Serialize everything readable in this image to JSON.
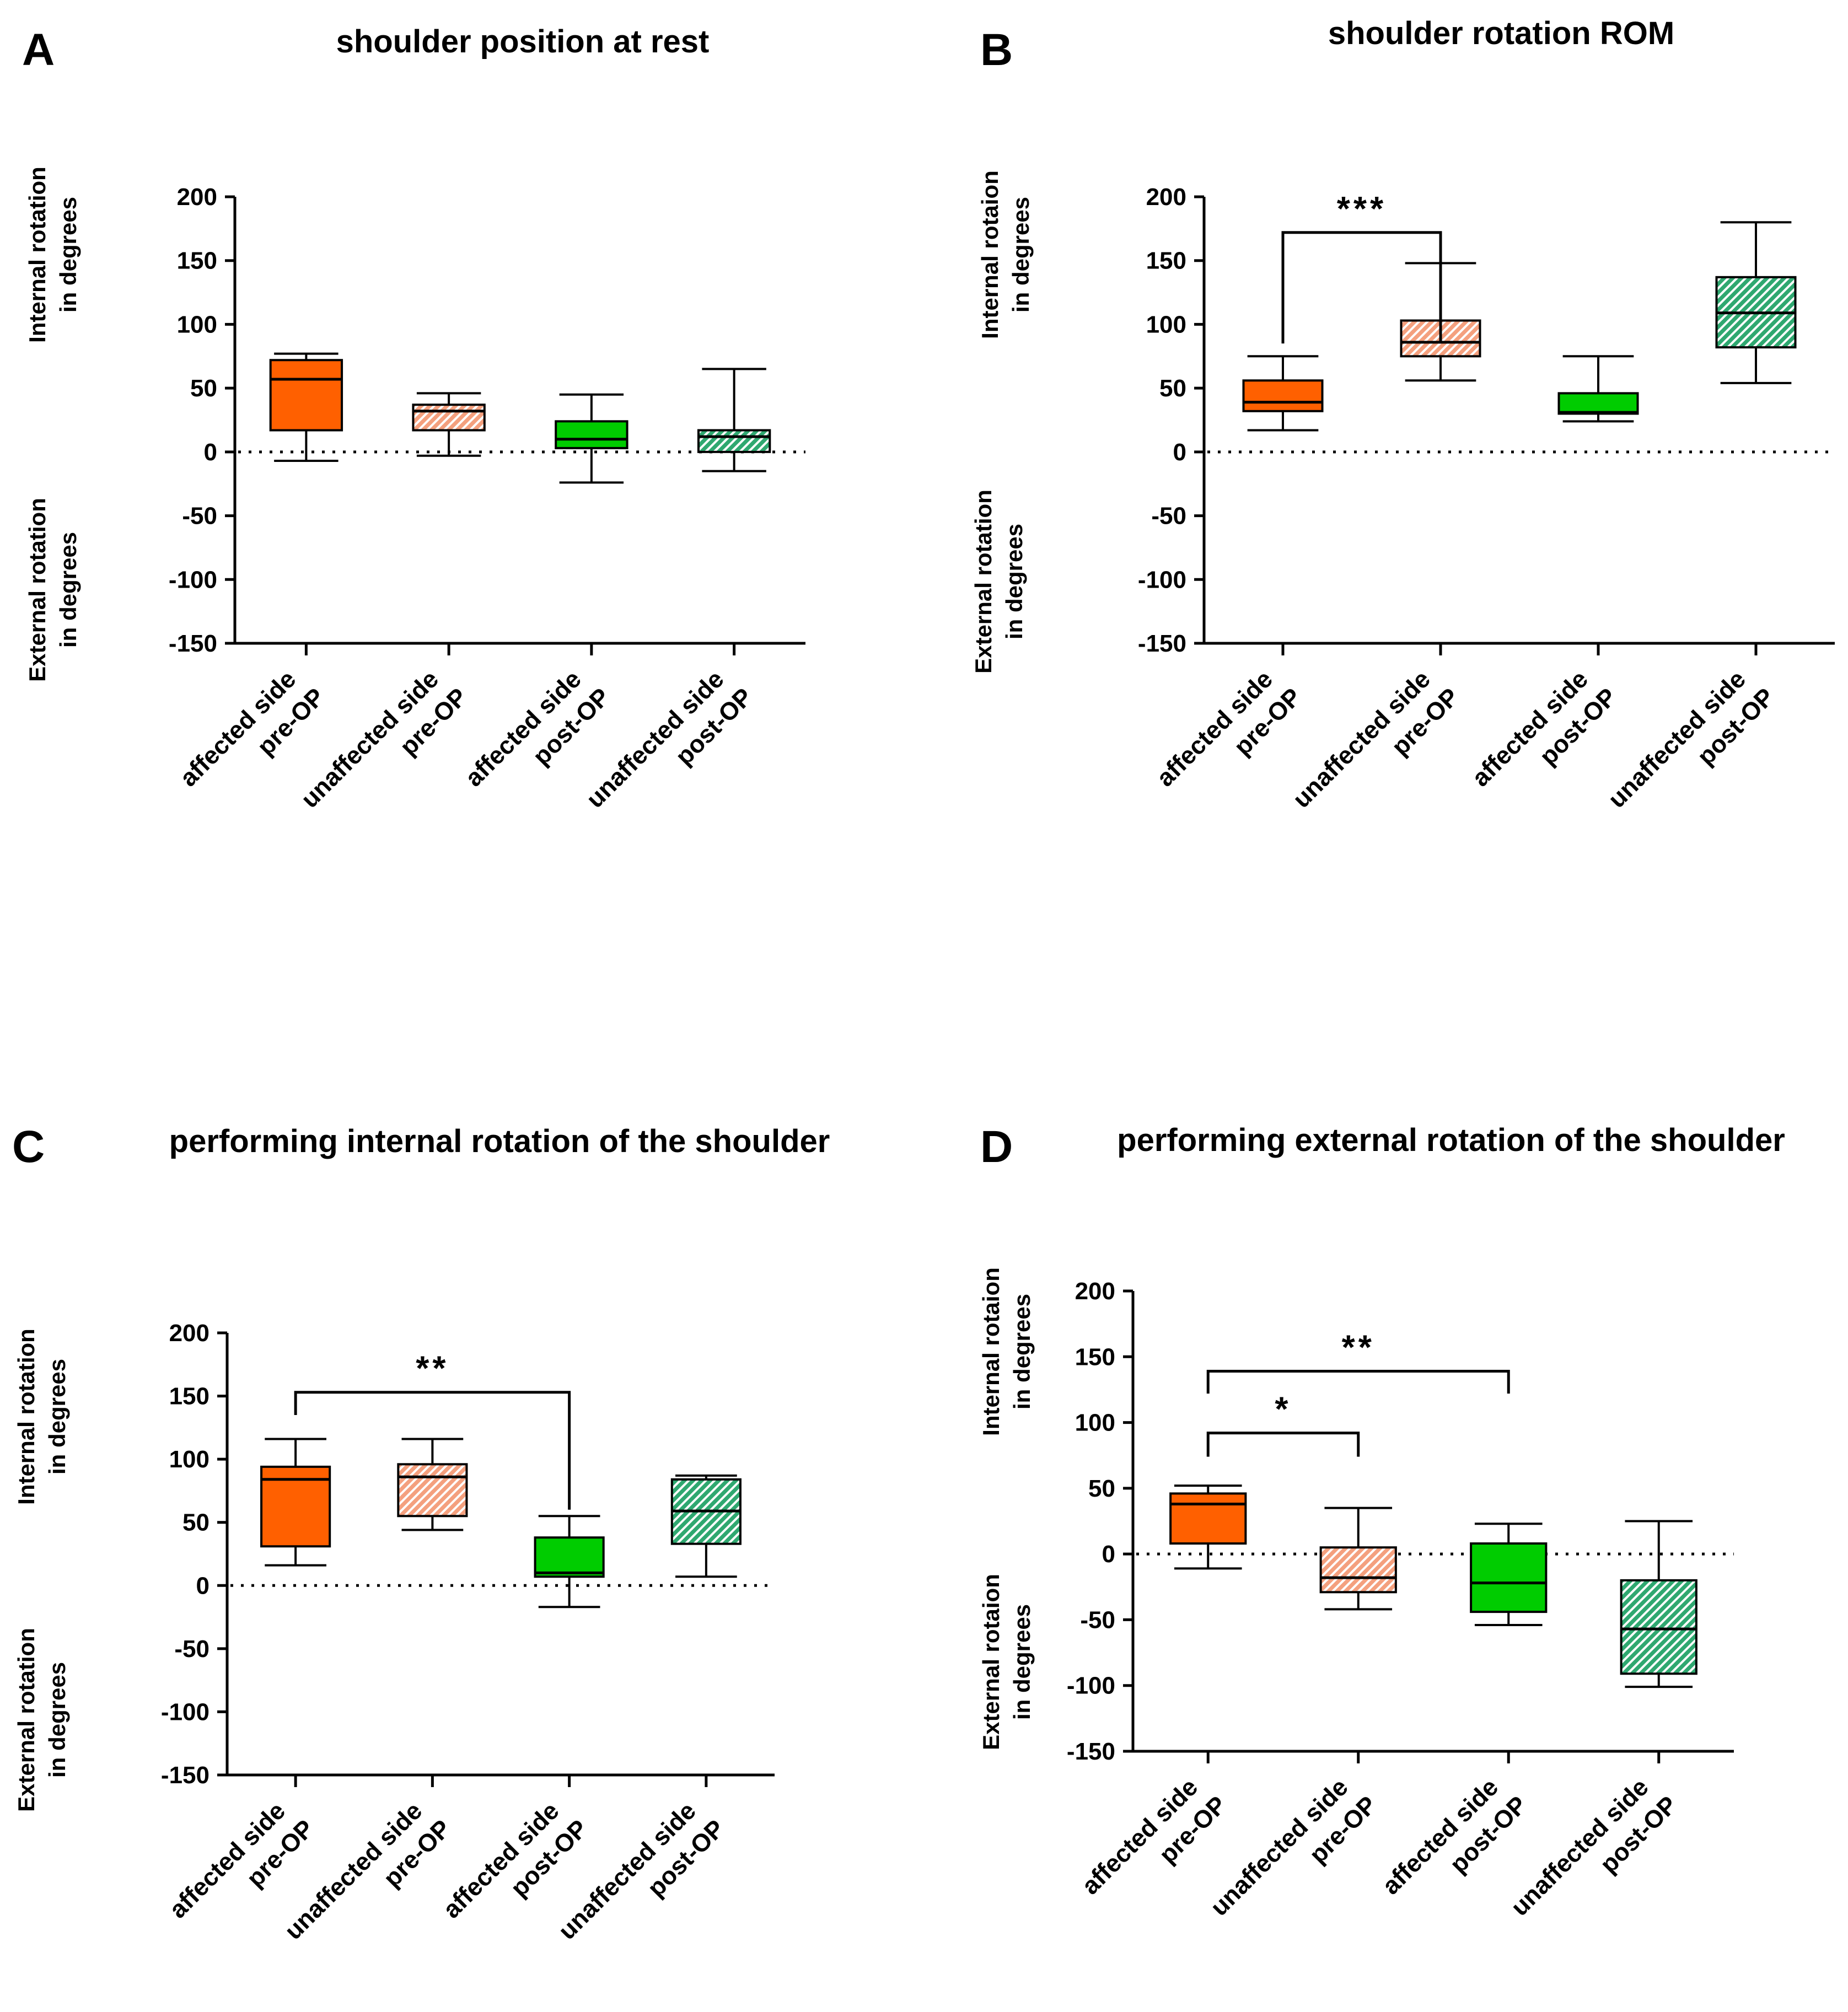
{
  "figure": {
    "colors": {
      "affected_pre": "#ff6000",
      "unaffected_pre_stripe": "#f4a07e",
      "affected_post": "#00cc00",
      "unaffected_post_stripe": "#2fa870",
      "axis": "#000000"
    }
  },
  "chart_data": [
    {
      "type": "box",
      "panel_letter": "A",
      "title": "shoulder position at rest",
      "ylabel_upper": [
        "Internal rotation",
        "in degrees"
      ],
      "ylabel_lower": [
        "External rotation",
        "in degrees"
      ],
      "ylim": [
        -150,
        200
      ],
      "yticks": [
        200,
        150,
        100,
        50,
        0,
        -50,
        -100,
        -150
      ],
      "ytick_labels": [
        "200",
        "150",
        "100",
        "50",
        "0",
        "-50",
        "-100",
        "-150"
      ],
      "reference_line": 0,
      "categories": [
        [
          "affected side",
          "pre-OP"
        ],
        [
          "unaffected side",
          "pre-OP"
        ],
        [
          "affected side",
          "post-OP"
        ],
        [
          "unaffected side",
          "post-OP"
        ]
      ],
      "boxes": [
        {
          "min": -7,
          "q1": 17,
          "median": 57,
          "q3": 72,
          "max": 77
        },
        {
          "min": -3,
          "q1": 17,
          "median": 32,
          "q3": 37,
          "max": 46
        },
        {
          "min": -24,
          "q1": 3,
          "median": 10,
          "q3": 24,
          "max": 45
        },
        {
          "min": -15,
          "q1": 0,
          "median": 12,
          "q3": 17,
          "max": 65
        }
      ],
      "significance": []
    },
    {
      "type": "box",
      "panel_letter": "B",
      "title": "shoulder rotation ROM",
      "ylabel_upper": [
        "Internal rotaion",
        "in degrees"
      ],
      "ylabel_lower": [
        "External rotation",
        "in degrees"
      ],
      "ylim": [
        -150,
        200
      ],
      "yticks": [
        200,
        150,
        100,
        50,
        0,
        -50,
        -100,
        -150
      ],
      "ytick_labels": [
        "200",
        "150",
        "100",
        "50",
        "0",
        "-50",
        "-100",
        "-150"
      ],
      "reference_line": 0,
      "categories": [
        [
          "affected side",
          "pre-OP"
        ],
        [
          "unaffected side",
          "pre-OP"
        ],
        [
          "affected side",
          "post-OP"
        ],
        [
          "unaffected side",
          "post-OP"
        ]
      ],
      "boxes": [
        {
          "min": 17,
          "q1": 32,
          "median": 39,
          "q3": 56,
          "max": 75
        },
        {
          "min": 56,
          "q1": 75,
          "median": 86,
          "q3": 103,
          "max": 148
        },
        {
          "min": 24,
          "q1": 30,
          "median": 31,
          "q3": 46,
          "max": 75
        },
        {
          "min": 54,
          "q1": 82,
          "median": 109,
          "q3": 137,
          "max": 180
        }
      ],
      "significance": [
        {
          "from": 0,
          "to": 1,
          "label": "***",
          "y": 172,
          "leg_end": 85
        }
      ]
    },
    {
      "type": "box",
      "panel_letter": "C",
      "title": "performing internal rotation of the shoulder",
      "ylabel_upper": [
        "Internal rotation",
        "in degrees"
      ],
      "ylabel_lower": [
        "External rotation",
        "in degrees"
      ],
      "ylim": [
        -150,
        200
      ],
      "yticks": [
        200,
        150,
        100,
        50,
        0,
        -50,
        -100,
        -150
      ],
      "ytick_labels": [
        "200",
        "150",
        "100",
        "50",
        "0",
        "-50",
        "-100",
        "-150"
      ],
      "reference_line": 0,
      "categories": [
        [
          "affected side",
          "pre-OP"
        ],
        [
          "unaffected side",
          "pre-OP"
        ],
        [
          "affected side",
          "post-OP"
        ],
        [
          "unaffected side",
          "post-OP"
        ]
      ],
      "boxes": [
        {
          "min": 16,
          "q1": 31,
          "median": 84,
          "q3": 94,
          "max": 116
        },
        {
          "min": 44,
          "q1": 55,
          "median": 86,
          "q3": 96,
          "max": 116
        },
        {
          "min": -17,
          "q1": 7,
          "median": 10,
          "q3": 38,
          "max": 55
        },
        {
          "min": 7,
          "q1": 33,
          "median": 59,
          "q3": 84,
          "max": 87
        }
      ],
      "significance": [
        {
          "from": 0,
          "to": 2,
          "label": "**",
          "y": 153,
          "leg_end": 135,
          "leg_end_to": 60
        }
      ]
    },
    {
      "type": "box",
      "panel_letter": "D",
      "title": "performing external rotation of the shoulder",
      "ylabel_upper": [
        "Internal rotaion",
        "in degrees"
      ],
      "ylabel_lower": [
        "External rotaion",
        "in degrees"
      ],
      "ylim": [
        -150,
        200
      ],
      "yticks": [
        200,
        150,
        100,
        50,
        0,
        -50,
        -100,
        -150
      ],
      "ytick_labels": [
        "200",
        "150",
        "100",
        "50",
        "0",
        "-50",
        "-100",
        "-150"
      ],
      "reference_line": 0,
      "categories": [
        [
          "affected side",
          "pre-OP"
        ],
        [
          "unaffected side",
          "pre-OP"
        ],
        [
          "affected side",
          "post-OP"
        ],
        [
          "unaffected side",
          "post-OP"
        ]
      ],
      "boxes": [
        {
          "min": -11,
          "q1": 8,
          "median": 38,
          "q3": 46,
          "max": 52
        },
        {
          "min": -42,
          "q1": -29,
          "median": -18,
          "q3": 5,
          "max": 35
        },
        {
          "min": -54,
          "q1": -44,
          "median": -22,
          "q3": 8,
          "max": 23
        },
        {
          "min": -101,
          "q1": -91,
          "median": -57,
          "q3": -20,
          "max": 25
        }
      ],
      "significance": [
        {
          "from": 0,
          "to": 2,
          "label": "**",
          "y": 139,
          "leg_end": 122,
          "leg_end_to": 122
        },
        {
          "from": 0,
          "to": 1,
          "label": "*",
          "y": 92,
          "leg_end": 74,
          "leg_end_to": 74
        }
      ]
    }
  ]
}
